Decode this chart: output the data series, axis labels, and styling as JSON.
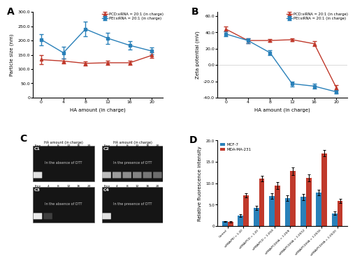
{
  "panel_A": {
    "x": [
      0,
      4,
      8,
      12,
      16,
      20
    ],
    "pcd_y": [
      133,
      128,
      120,
      122,
      122,
      148
    ],
    "pcd_err": [
      15,
      8,
      7,
      8,
      7,
      10
    ],
    "pei_y": [
      203,
      157,
      240,
      208,
      183,
      163
    ],
    "pei_err": [
      20,
      20,
      25,
      20,
      15,
      12
    ],
    "pcd_color": "#c0392b",
    "pei_color": "#2980b9",
    "xlabel": "HA amount (in charge)",
    "ylabel": "Particle size (nm)",
    "ylim": [
      0,
      300
    ],
    "yticks": [
      0,
      50,
      100,
      150,
      200,
      250,
      300
    ],
    "ytick_labels": [
      "0",
      "50.0",
      "100.0",
      "150.0",
      "200.0",
      "250.0",
      "300.0"
    ],
    "label": "A",
    "legend_pcd": "PCD:siRNA = 20:1 (in charge)",
    "legend_pei": "PEI:siRNA = 20:1 (in charge)"
  },
  "panel_B": {
    "x": [
      0,
      4,
      8,
      12,
      16,
      20
    ],
    "pcd_y": [
      44,
      30,
      30,
      31,
      26,
      -28
    ],
    "pcd_err": [
      3,
      3,
      2,
      2,
      3,
      3
    ],
    "pei_y": [
      38,
      30,
      15,
      -23,
      -26,
      -33
    ],
    "pei_err": [
      3,
      3,
      3,
      3,
      3,
      2
    ],
    "pcd_color": "#c0392b",
    "pei_color": "#2980b9",
    "xlabel": "HA amount (in charge)",
    "ylabel": "Zeta potential (mV)",
    "ylim": [
      -40,
      65
    ],
    "yticks": [
      -40,
      -20,
      0,
      20,
      40,
      60
    ],
    "ytick_labels": [
      "-40.0",
      "-20.0",
      "0.0",
      "20.0",
      "40.0",
      "60.0"
    ],
    "label": "B",
    "legend_pcd": "PCD:siRNA = 20:1 (in charge)",
    "legend_pei": "PEI:siRNA = 20:1 (in charge)"
  },
  "panel_C": {
    "label": "C",
    "top_labels_top": [
      "Free",
      "4",
      "8",
      "12",
      "16",
      "20"
    ],
    "top_labels_bot": [
      "Free",
      "4",
      "8",
      "12",
      "16",
      "20"
    ],
    "absent_dtt": "In the absence of DTT",
    "present_dtt": "In the presence of DTT",
    "ha_label": "HA amount (in charge)",
    "c1_bands": [
      0.88,
      0.0,
      0.0,
      0.0,
      0.0,
      0.0
    ],
    "c2_bands": [
      0.72,
      0.58,
      0.52,
      0.48,
      0.42,
      0.38
    ],
    "c3_bands": [
      0.92,
      0.18,
      0.0,
      0.0,
      0.0,
      0.0
    ],
    "c4_bands": [
      0.88,
      0.0,
      0.0,
      0.0,
      0.0,
      0.0
    ]
  },
  "panel_D": {
    "label": "D",
    "categories": [
      "Control",
      "siRNA/PEI = 1:20",
      "siRNA/PCD = 1:20",
      "siRNA/PCD = 1:20/4",
      "siRNA/PCD/HA = 1:20/8",
      "siRNA/PCD/HA = 1:20/12",
      "siRNA/PCD/HA = 1:20/16",
      "siRNA/PCD/HA = 1:20/20"
    ],
    "mcf7_values": [
      1.1,
      2.5,
      4.2,
      7.0,
      6.5,
      6.8,
      7.8,
      3.0
    ],
    "mda_values": [
      1.0,
      7.2,
      11.1,
      9.5,
      12.8,
      11.2,
      17.0,
      5.8
    ],
    "mcf7_err": [
      0.1,
      0.3,
      0.5,
      0.6,
      0.6,
      0.7,
      0.6,
      0.4
    ],
    "mda_err": [
      0.1,
      0.5,
      0.7,
      0.8,
      0.9,
      0.8,
      0.7,
      0.5
    ],
    "mcf7_color": "#2980b9",
    "mda_color": "#c0392b",
    "ylabel": "Relative fluorescence intensity",
    "legend_mcf7": "MCF-7",
    "legend_mda": "MDA-MA-231",
    "ylim": [
      0,
      20
    ],
    "yticks": [
      0,
      5,
      10,
      15,
      20
    ],
    "ytick_labels": [
      "0",
      "5.0",
      "10.0",
      "15.0",
      "20.0"
    ]
  }
}
